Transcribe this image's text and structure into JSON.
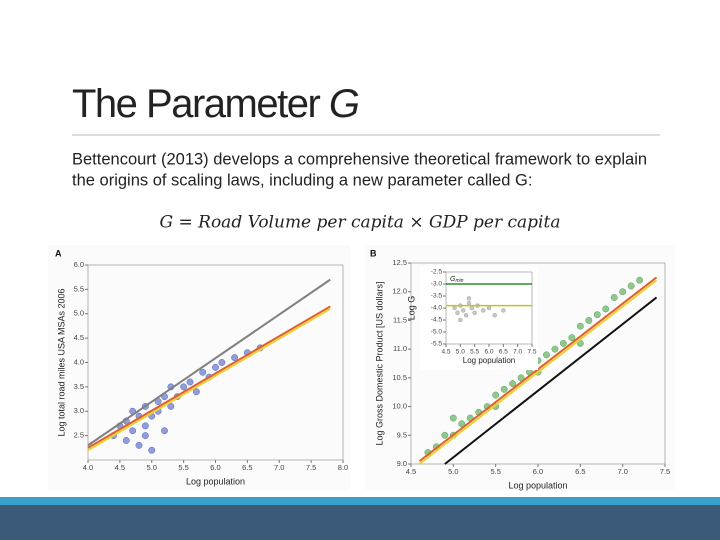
{
  "slide": {
    "title": "The Parameter",
    "title_var": "G",
    "body": [
      "Bettencourt (2013) develops a comprehensive theoretical framework to explain",
      "the origins of scaling laws, including a new parameter called G:"
    ],
    "equation": "G = Road Volume per capita  ×  GDP per capita"
  },
  "chart_data": [
    {
      "type": "scatter",
      "panel": "A",
      "xlabel": "Log population",
      "ylabel": "Log total road miles USA MSAs 2006",
      "xlim": [
        4.0,
        8.0
      ],
      "ylim": [
        2.0,
        6.0
      ],
      "xticks": [
        {
          "value": 4,
          "label": "4.0"
        },
        4.5,
        {
          "value": 5,
          "label": "5.0"
        },
        5.5,
        {
          "value": 6,
          "label": "6.0"
        },
        6.5,
        {
          "value": 7,
          "label": "7.0"
        },
        7.5,
        {
          "value": 8,
          "label": "8.0"
        }
      ],
      "yticks": [
        {
          "value": 2.5,
          "label": "2.5"
        },
        {
          "value": 3,
          "label": "3.0"
        },
        3.5,
        {
          "value": 4,
          "label": "4.0"
        },
        4.5,
        {
          "value": 5,
          "label": "5.0"
        },
        5.5,
        {
          "value": 6,
          "label": "6.0"
        }
      ],
      "series": [
        {
          "color": "#3b4fc0",
          "x": [
            4.4,
            4.5,
            4.6,
            4.7,
            4.7,
            4.8,
            4.8,
            4.9,
            4.9,
            5.0,
            5.0,
            5.1,
            5.1,
            5.2,
            5.3,
            5.3,
            5.4,
            5.5,
            5.6,
            5.7,
            5.8,
            5.9,
            6.0,
            6.1,
            6.3,
            6.5,
            6.7,
            4.6,
            4.9,
            5.2
          ],
          "values": [
            2.5,
            2.7,
            2.8,
            2.6,
            3.0,
            2.9,
            2.3,
            3.1,
            2.7,
            2.9,
            2.2,
            3.2,
            3.0,
            3.3,
            3.1,
            3.5,
            3.3,
            3.5,
            3.6,
            3.4,
            3.8,
            3.7,
            3.9,
            4.0,
            4.1,
            4.2,
            4.3,
            2.4,
            2.5,
            2.6
          ]
        },
        {
          "type": "line",
          "color": "#808080",
          "x": [
            4.0,
            7.8
          ],
          "values": [
            2.3,
            5.7
          ]
        },
        {
          "type": "line",
          "color": "#e8d23a",
          "x": [
            4.0,
            7.8
          ],
          "values": [
            2.2,
            5.1
          ]
        },
        {
          "type": "line",
          "color": "#e0602a",
          "x": [
            4.0,
            7.8
          ],
          "values": [
            2.25,
            5.15
          ]
        }
      ]
    },
    {
      "type": "scatter",
      "panel": "B",
      "xlabel": "Log population",
      "ylabel": "Log Gross Domestic Product [US dollars]",
      "xlim": [
        4.5,
        7.5
      ],
      "ylim": [
        9.0,
        12.5
      ],
      "xticks": [
        4.5,
        {
          "value": 5,
          "label": "5.0"
        },
        5.5,
        {
          "value": 6,
          "label": "6.0"
        },
        6.5,
        {
          "value": 7,
          "label": "7.0"
        },
        7.5
      ],
      "yticks": [
        {
          "value": 9,
          "label": "9.0"
        },
        9.5,
        {
          "value": 10,
          "label": "10.0"
        },
        10.5,
        {
          "value": 11,
          "label": "11.0"
        },
        11.5,
        {
          "value": 12,
          "label": "12.0"
        },
        12.5
      ],
      "series": [
        {
          "color": "#3a9a3a",
          "x": [
            4.7,
            4.8,
            4.9,
            5.0,
            5.1,
            5.2,
            5.3,
            5.4,
            5.5,
            5.6,
            5.7,
            5.8,
            5.9,
            6.0,
            6.1,
            6.2,
            6.3,
            6.4,
            6.5,
            6.6,
            6.7,
            6.8,
            6.9,
            7.0,
            7.1,
            7.2,
            5.0,
            5.5,
            6.0,
            6.5
          ],
          "values": [
            9.2,
            9.3,
            9.5,
            9.5,
            9.7,
            9.8,
            9.9,
            10.0,
            10.2,
            10.3,
            10.4,
            10.5,
            10.6,
            10.8,
            10.9,
            11.0,
            11.1,
            11.2,
            11.4,
            11.5,
            11.6,
            11.7,
            11.9,
            12.0,
            12.1,
            12.2,
            9.8,
            10.0,
            10.6,
            11.1
          ]
        },
        {
          "type": "line",
          "color": "#111111",
          "x": [
            4.9,
            7.4
          ],
          "values": [
            9.0,
            11.9
          ]
        },
        {
          "type": "line",
          "color": "#e8d23a",
          "x": [
            4.6,
            7.4
          ],
          "values": [
            9.0,
            12.2
          ]
        },
        {
          "type": "line",
          "color": "#e0602a",
          "x": [
            4.6,
            7.4
          ],
          "values": [
            9.05,
            12.25
          ]
        }
      ]
    },
    {
      "type": "scatter",
      "xlabel": "Log population",
      "ylabel": "Log G",
      "annotation": "G",
      "annotation_sub": "min",
      "xlim": [
        4.5,
        7.5
      ],
      "ylim": [
        -5.5,
        -2.5
      ],
      "xticks": [
        4.5,
        {
          "value": 5,
          "label": "5.0"
        },
        5.5,
        {
          "value": 6,
          "label": "6.0"
        },
        6.5,
        {
          "value": 7,
          "label": "7.0"
        },
        7.5
      ],
      "yticks": [
        -2.5,
        {
          "value": -3,
          "label": "-3.0"
        },
        -3.5,
        {
          "value": -4,
          "label": "-4.0"
        },
        -4.5,
        {
          "value": -5,
          "label": "-5.0"
        },
        -5.5
      ],
      "series": [
        {
          "color": "#999999",
          "x": [
            4.8,
            4.9,
            5.0,
            5.1,
            5.2,
            5.3,
            5.4,
            5.5,
            5.6,
            5.8,
            6.0,
            6.2,
            6.5,
            5.0,
            5.3
          ],
          "values": [
            -4.0,
            -4.2,
            -3.9,
            -4.1,
            -4.3,
            -3.8,
            -4.0,
            -4.2,
            -3.9,
            -4.1,
            -4.0,
            -4.3,
            -4.1,
            -4.5,
            -3.6
          ]
        },
        {
          "type": "line",
          "color": "#2e8b2e",
          "x": [
            4.5,
            7.5
          ],
          "values": [
            -3.0,
            -3.0
          ]
        },
        {
          "type": "line",
          "color": "#c8c020",
          "x": [
            4.5,
            7.5
          ],
          "values": [
            -3.9,
            -3.9
          ]
        }
      ]
    }
  ]
}
